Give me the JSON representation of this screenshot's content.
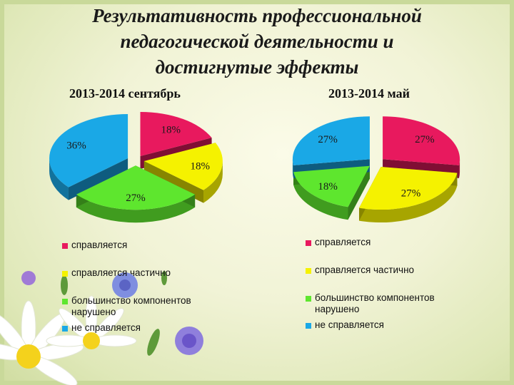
{
  "title_lines": [
    "Результативность профессиональной",
    "педагогической деятельности и",
    "достигнутые эффекты"
  ],
  "chart_data": [
    {
      "type": "pie",
      "title": "2013-2014 сентябрь",
      "categories": [
        "справляется",
        "справляется частично",
        "большинство компонентов нарушено",
        "не справляется"
      ],
      "values": [
        18,
        18,
        27,
        36
      ],
      "labels": [
        "18%",
        "18%",
        "27%",
        "36%"
      ],
      "colors": [
        "#e8195e",
        "#f5f200",
        "#5ee62e",
        "#1aa8e6"
      ],
      "exploded": true,
      "legend": "bottom"
    },
    {
      "type": "pie",
      "title": "2013-2014 май",
      "categories": [
        "справляется",
        "справляется частично",
        "большинство компонентов нарушено",
        "не справляется"
      ],
      "values": [
        27,
        27,
        18,
        27
      ],
      "labels": [
        "27%",
        "27%",
        "18%",
        "27%"
      ],
      "colors": [
        "#e8195e",
        "#f5f200",
        "#5ee62e",
        "#1aa8e6"
      ],
      "exploded": true,
      "legend": "bottom"
    }
  ],
  "legend_left": [
    {
      "lines": [
        "справляется"
      ],
      "color": "#e8195e"
    },
    {
      "lines": [
        "справляется частично"
      ],
      "color": "#f5f200"
    },
    {
      "lines": [
        "большинство компонентов",
        "нарушено"
      ],
      "color": "#5ee62e"
    },
    {
      "lines": [
        "не справляется"
      ],
      "color": "#1aa8e6"
    }
  ],
  "legend_right": [
    {
      "lines": [
        "справляется"
      ],
      "color": "#e8195e"
    },
    {
      "lines": [
        "справляется частично"
      ],
      "color": "#f5f200"
    },
    {
      "lines": [
        "большинство компонентов",
        "нарушено"
      ],
      "color": "#5ee62e"
    },
    {
      "lines": [
        "не справляется"
      ],
      "color": "#1aa8e6"
    }
  ]
}
